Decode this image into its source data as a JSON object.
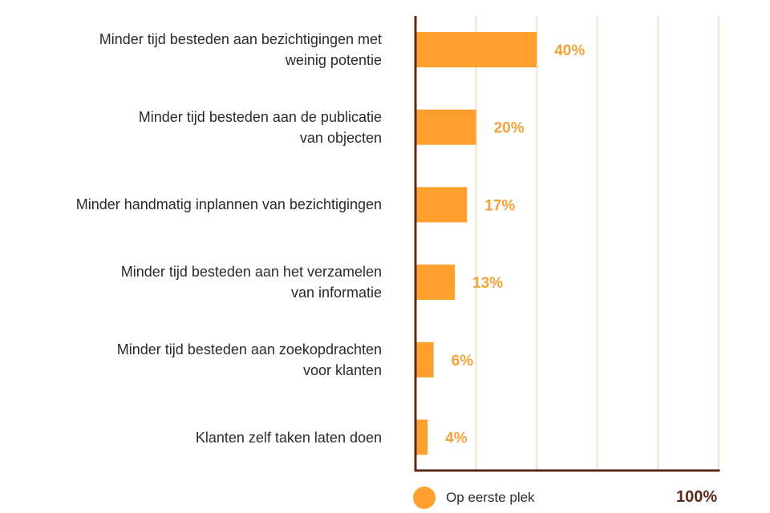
{
  "chart_data": {
    "type": "bar",
    "orientation": "horizontal",
    "categories": [
      [
        "Minder tijd besteden aan bezichtigingen met",
        "weinig potentie"
      ],
      [
        "Minder tijd besteden aan de publicatie",
        "van objecten"
      ],
      [
        "Minder handmatig inplannen van bezichtigingen"
      ],
      [
        "Minder tijd besteden aan het verzamelen",
        "van informatie"
      ],
      [
        "Minder tijd besteden aan zoekopdrachten",
        "voor klanten"
      ],
      [
        "Klanten zelf taken laten doen"
      ]
    ],
    "values": [
      40,
      20,
      17,
      13,
      6,
      4
    ],
    "value_labels": [
      "40%",
      "20%",
      "17%",
      "13%",
      "6%",
      "4%"
    ],
    "xlim": [
      0,
      100
    ],
    "x_gridlines": [
      20,
      40,
      60,
      80,
      100
    ],
    "grid": true,
    "legend": {
      "label": "Op eerste plek",
      "placement": "bottom"
    },
    "max_label": "100%",
    "colors": {
      "bar": "#FF9F2E",
      "value_label": "#F2A33A",
      "axis": "#5A2A1C",
      "grid": "#F1EBDC",
      "max_label": "#5A2A1C"
    }
  }
}
